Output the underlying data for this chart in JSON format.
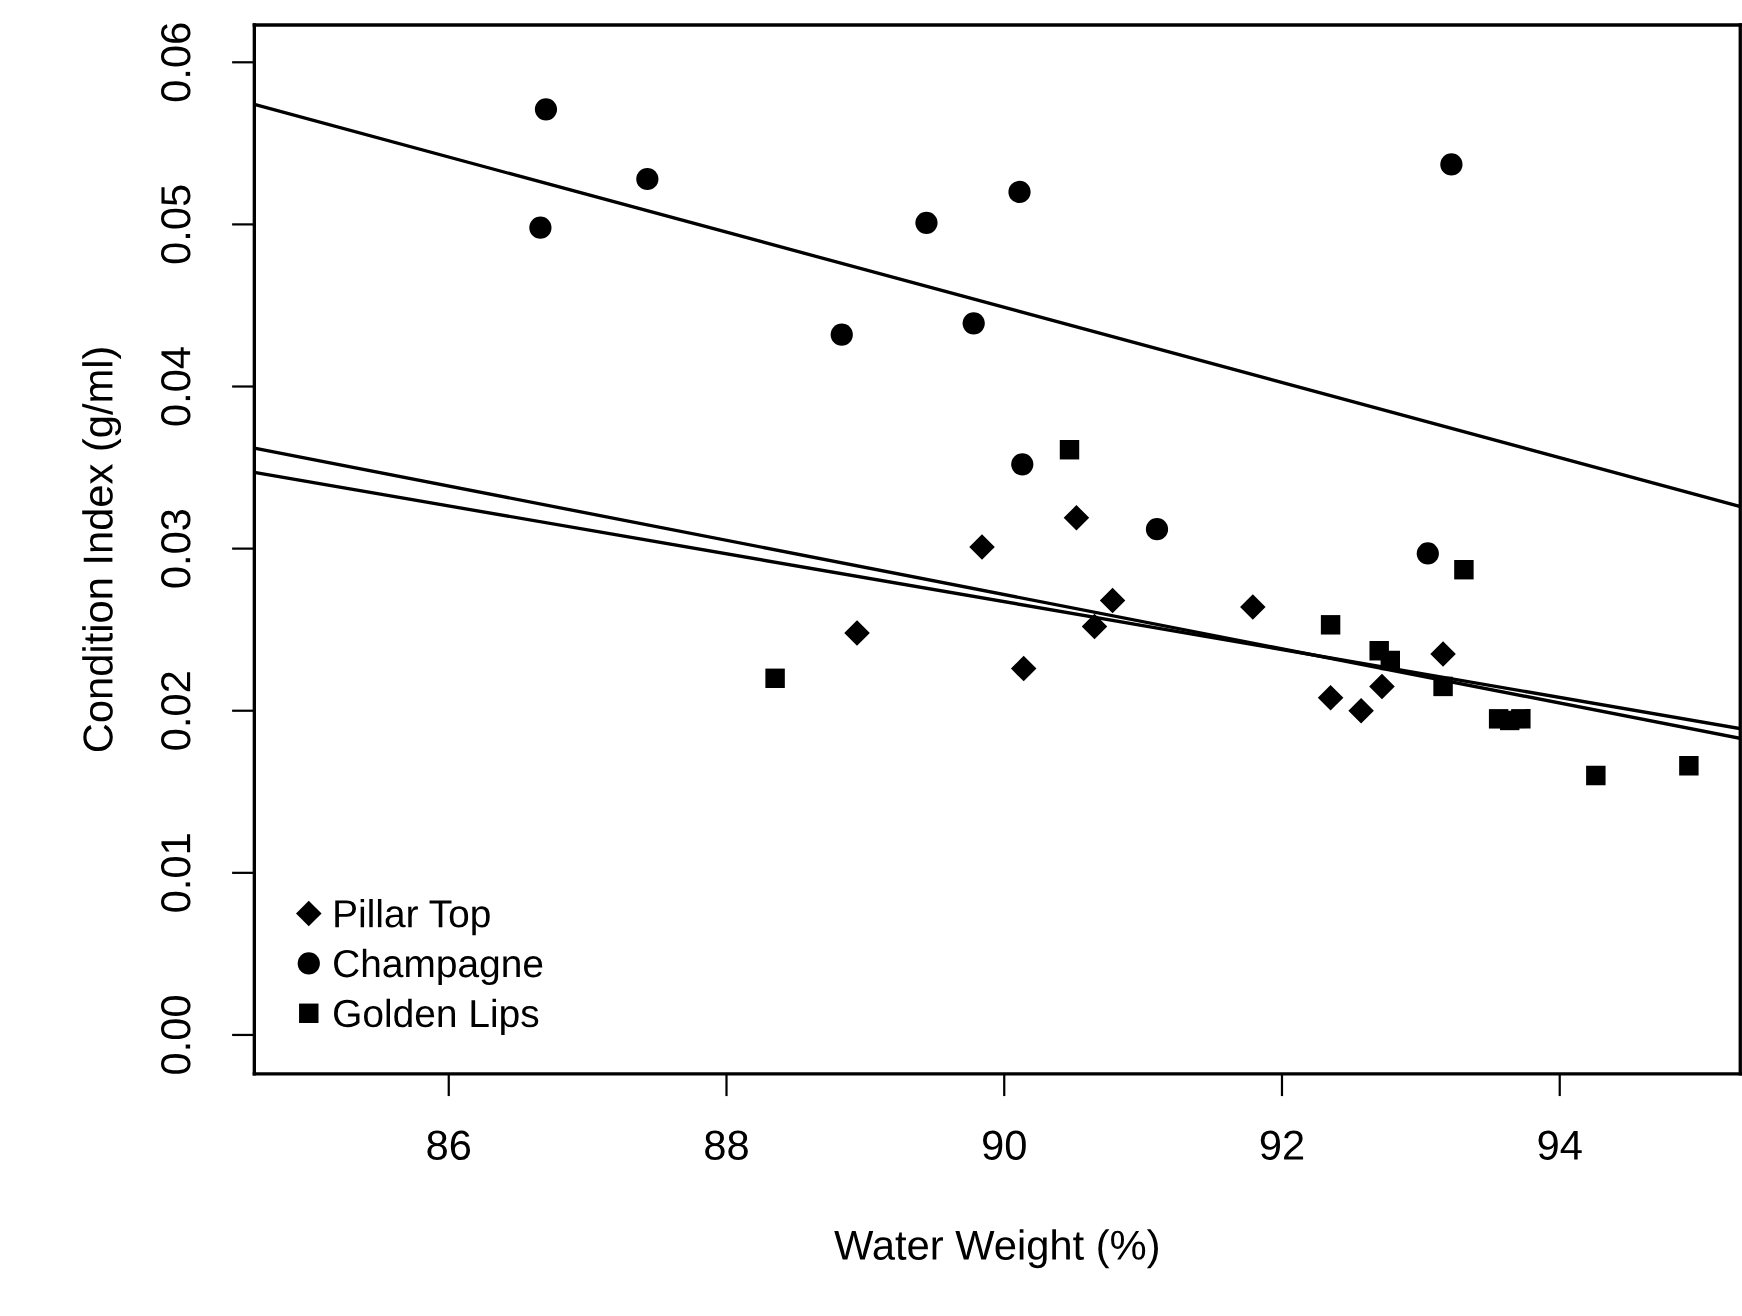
{
  "chart_data": {
    "type": "scatter",
    "xlabel": "Water Weight (%)",
    "ylabel": "Condition Index (g/ml)",
    "xlim": [
      84.6,
      95.3
    ],
    "ylim": [
      -0.0024,
      0.0623
    ],
    "xticks": [
      86,
      88,
      90,
      92,
      94
    ],
    "yticks": [
      {
        "value": 0,
        "label": "0.00"
      },
      {
        "value": 0.01,
        "label": "0.01"
      },
      {
        "value": 0.02,
        "label": "0.02"
      },
      {
        "value": 0.03,
        "label": "0.03"
      },
      {
        "value": 0.04,
        "label": "0.04"
      },
      {
        "value": 0.05,
        "label": "0.05"
      },
      {
        "value": 0.06,
        "label": "0.06"
      }
    ],
    "grid": false,
    "legend": "bottom left",
    "series": [
      {
        "name": "Pillar Top",
        "color": "#000000",
        "marker": "diamond",
        "x": [
          89.84,
          90.52,
          90.78,
          90.65,
          90.14,
          91.79,
          93.16,
          92.72,
          92.35,
          92.57,
          88.94
        ],
        "values": [
          0.0301,
          0.0319,
          0.0268,
          0.0252,
          0.0226,
          0.0264,
          0.0235,
          0.0215,
          0.0208,
          0.02,
          0.0248
        ]
      },
      {
        "name": "Champagne",
        "color": "#000000",
        "marker": "circle",
        "x": [
          86.7,
          87.43,
          86.66,
          89.44,
          90.11,
          88.83,
          89.78,
          90.13,
          91.1,
          93.05,
          93.22
        ],
        "values": [
          0.0571,
          0.0528,
          0.0498,
          0.0501,
          0.052,
          0.0432,
          0.0439,
          0.0352,
          0.0312,
          0.0297,
          0.0537
        ]
      },
      {
        "name": "Golden Lips",
        "color": "#000000",
        "marker": "square",
        "x": [
          90.47,
          93.31,
          92.35,
          92.7,
          92.78,
          93.16,
          93.56,
          93.64,
          93.72,
          94.26,
          94.93,
          88.35
        ],
        "values": [
          0.0361,
          0.0287,
          0.0253,
          0.0237,
          0.0231,
          0.0215,
          0.0195,
          0.0194,
          0.0195,
          0.016,
          0.0166,
          0.022
        ]
      },
      {
        "type": "line",
        "color": "#000000",
        "x": [
          84.6,
          95.3
        ],
        "values": [
          0.0574,
          0.0326
        ]
      },
      {
        "type": "line",
        "color": "#000000",
        "x": [
          84.6,
          95.3
        ],
        "values": [
          0.0362,
          0.0183
        ]
      },
      {
        "type": "line",
        "color": "#000000",
        "x": [
          84.6,
          95.3
        ],
        "values": [
          0.0347,
          0.0189
        ]
      }
    ]
  }
}
